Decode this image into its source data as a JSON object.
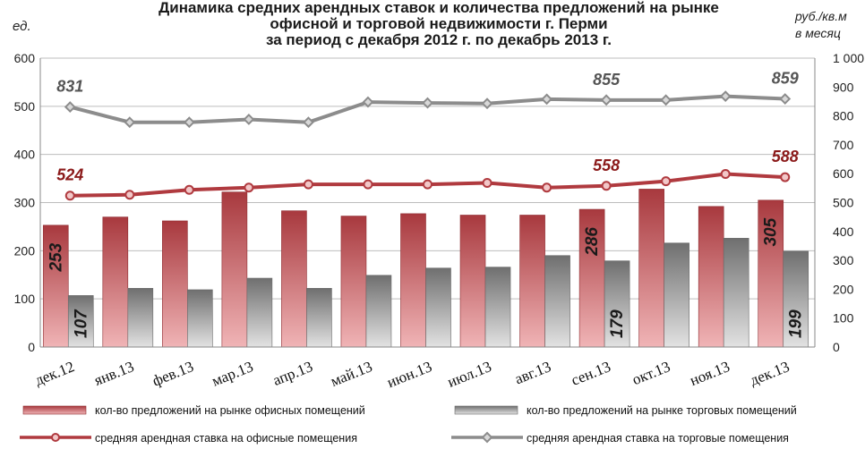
{
  "title": "Динамика средних арендных ставок и количества предложений на рынке офисной и торговой недвижимости г. Перми за период с декабря 2012 г. по декабрь 2013 г.",
  "title_lines": [
    "Динамика средних арендных ставок и количества предложений на рынке",
    "офисной и торговой недвижимости г. Перми",
    "за период с декабря 2012 г. по декабрь 2013 г."
  ],
  "unit_left": "ед.",
  "unit_right_lines": [
    "руб./кв.м",
    "в месяц"
  ],
  "colors": {
    "office_bar": "#b2454b",
    "office_bar_light": "#e9a0a3",
    "retail_bar": "#808080",
    "retail_bar_light": "#d6d6d6",
    "office_line": "#b03a3f",
    "retail_line": "#8c8c8c",
    "office_label": "#8b1a1a",
    "retail_label": "#555555"
  },
  "chart_data": {
    "type": "bar",
    "categories": [
      "дек.12",
      "янв.13",
      "фев.13",
      "мар.13",
      "апр.13",
      "май.13",
      "июн.13",
      "июл.13",
      "авг.13",
      "сен.13",
      "окт.13",
      "ноя.13",
      "дек.13"
    ],
    "y_left": {
      "min": 0,
      "max": 600,
      "ticks": [
        "0",
        "100",
        "200",
        "300",
        "400",
        "500",
        "600"
      ]
    },
    "y_right": {
      "min": 0,
      "max": 1000,
      "ticks": [
        "0",
        "100",
        "200",
        "300",
        "400",
        "500",
        "600",
        "700",
        "800",
        "900",
        "1 000"
      ]
    },
    "grid": true,
    "legend_position": "bottom",
    "series": [
      {
        "name": "кол-во предложений   на рынке офисных  помещений",
        "type": "bar",
        "axis": "left",
        "values": [
          253,
          270,
          262,
          322,
          283,
          272,
          277,
          274,
          274,
          286,
          328,
          292,
          305
        ],
        "labels": {
          "0": "253",
          "9": "286",
          "12": "305"
        }
      },
      {
        "name": "кол-во предложений  на рынке торговых помещений",
        "type": "bar",
        "axis": "left",
        "values": [
          107,
          122,
          119,
          143,
          122,
          149,
          164,
          166,
          190,
          179,
          216,
          226,
          199
        ],
        "labels": {
          "0": "107",
          "9": "179",
          "12": "199"
        }
      },
      {
        "name": "средняя арендная  ставка на офисные  помещения",
        "type": "line",
        "axis": "right",
        "values": [
          524,
          527,
          544,
          552,
          563,
          563,
          563,
          568,
          552,
          558,
          574,
          599,
          588
        ],
        "labels": {
          "0": "524",
          "9": "558",
          "12": "588"
        }
      },
      {
        "name": "средняя арендная  ставка на торговые помещения",
        "type": "line",
        "axis": "right",
        "values": [
          831,
          778,
          778,
          788,
          778,
          848,
          845,
          843,
          858,
          855,
          855,
          868,
          859
        ],
        "labels": {
          "0": "831",
          "9": "855",
          "12": "859"
        }
      }
    ]
  }
}
